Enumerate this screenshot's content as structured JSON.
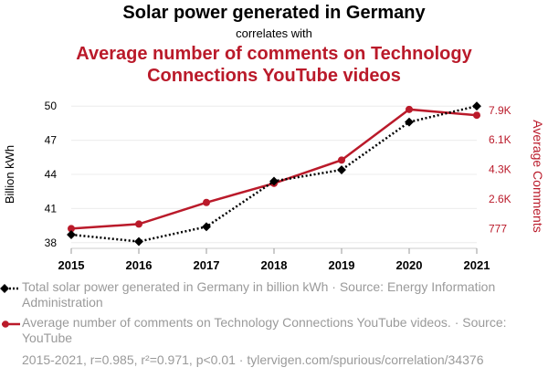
{
  "title": {
    "main": "Solar power generated in Germany",
    "connector": "correlates with",
    "secondary": "Average number of comments on Technology Connections YouTube videos"
  },
  "colors": {
    "series1": "#000000",
    "series2": "#ba1a2a",
    "grid": "#ececec",
    "muted": "#9a9a9a"
  },
  "chart_data": {
    "type": "line",
    "x": [
      2015,
      2016,
      2017,
      2018,
      2019,
      2020,
      2021
    ],
    "series": [
      {
        "name": "Total solar power generated in Germany in billion kWh",
        "axis": "left",
        "style": "dotted",
        "marker": "diamond",
        "values": [
          38.7,
          38.1,
          39.4,
          43.4,
          44.4,
          48.6,
          50.0
        ]
      },
      {
        "name": "Average number of comments on Technology Connections YouTube videos",
        "axis": "right",
        "style": "solid",
        "marker": "circle",
        "values": [
          777,
          1050,
          2350,
          3500,
          4900,
          7950,
          7600
        ]
      }
    ],
    "y_left": {
      "label": "Billion kWh",
      "ticks": [
        38,
        41,
        44,
        47,
        50
      ],
      "range": [
        37.5,
        50.5
      ]
    },
    "y_right": {
      "label": "Average Comments",
      "ticks": [
        777,
        2556,
        4335,
        6114,
        7893
      ],
      "tick_labels": [
        "777",
        "2.6K",
        "4.3K",
        "6.1K",
        "7.9K"
      ],
      "range": [
        -410,
        8490
      ]
    },
    "x_ticks": [
      "2015",
      "2016",
      "2017",
      "2018",
      "2019",
      "2020",
      "2021"
    ]
  },
  "legend": {
    "item1": "Total solar power generated in Germany in billion kWh · Source: Energy Information Administration",
    "item2": "Average number of comments on Technology Connections YouTube videos. · Source: YouTube"
  },
  "footer": "2015-2021, r=0.985, r²=0.971, p<0.01 · tylervigen.com/spurious/correlation/34376"
}
